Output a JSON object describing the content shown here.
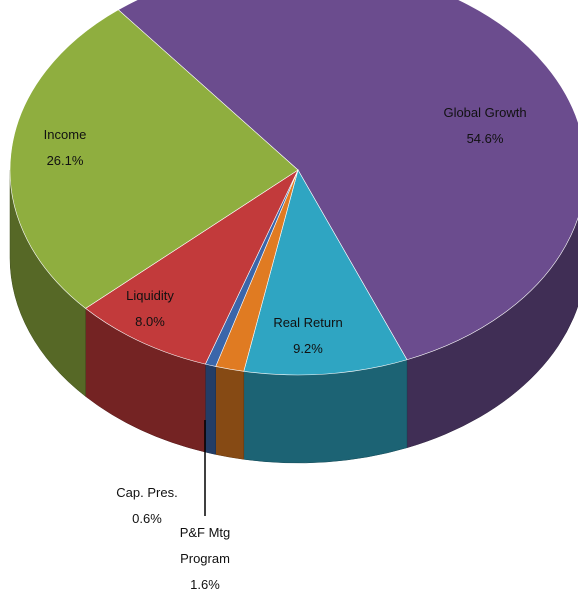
{
  "chart_data": {
    "type": "pie",
    "categories": [
      "Global Growth",
      "Real Return",
      "P&F Mtg Program",
      "Cap. Pres.",
      "Liquidity",
      "Income"
    ],
    "values": [
      54.6,
      9.2,
      1.6,
      0.6,
      8.0,
      26.1
    ],
    "value_labels": [
      "54.6%",
      "9.2%",
      "1.6%",
      "0.6%",
      "8.0%",
      "26.1%"
    ],
    "colors": [
      "#6b4c8e",
      "#2fa5c2",
      "#e07b22",
      "#3b66aa",
      "#c23a3b",
      "#8fae3f"
    ]
  }
}
